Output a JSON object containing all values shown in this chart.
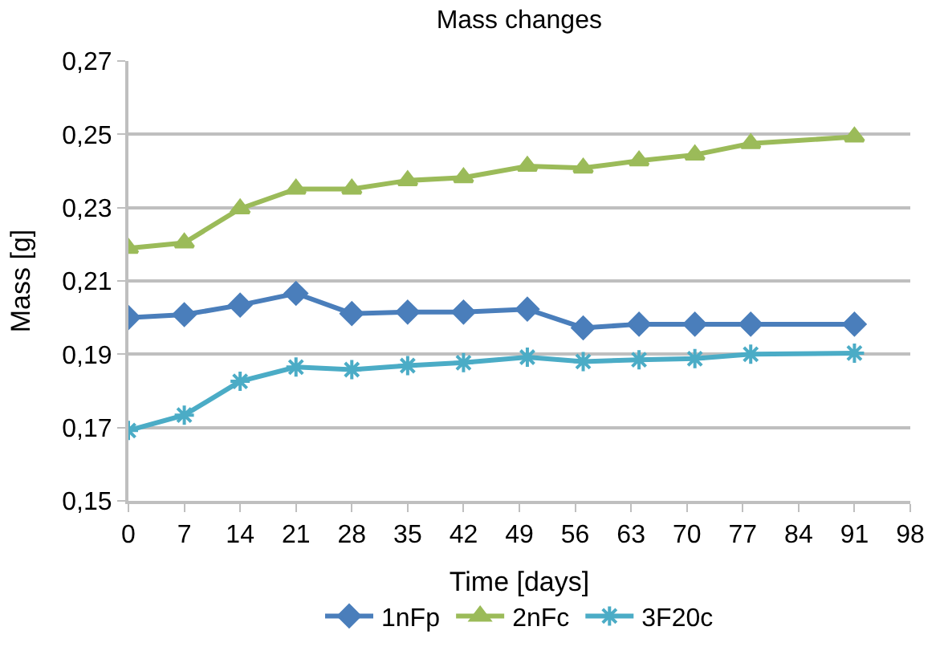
{
  "chart_data": {
    "type": "line",
    "title": "Mass changes",
    "xlabel": "Time [days]",
    "ylabel": "Mass [g]",
    "x": [
      0,
      7,
      14,
      21,
      28,
      35,
      42,
      50,
      57,
      64,
      71,
      78,
      91
    ],
    "series": [
      {
        "name": "1nFp",
        "color": "#4a7ebb",
        "marker": "diamond",
        "values": [
          0.2,
          0.2008,
          0.2034,
          0.2066,
          0.2011,
          0.2015,
          0.2015,
          0.2023,
          0.1972,
          0.1982,
          0.1982,
          0.1982,
          0.1982
        ]
      },
      {
        "name": "2nFc",
        "color": "#9bbb59",
        "marker": "triangle",
        "values": [
          0.2189,
          0.2204,
          0.2297,
          0.2351,
          0.2351,
          0.2374,
          0.2382,
          0.2413,
          0.2408,
          0.2428,
          0.2444,
          0.2475,
          0.2493
        ]
      },
      {
        "name": "3F20c",
        "color": "#4bacc6",
        "marker": "cross",
        "values": [
          0.1692,
          0.1734,
          0.1826,
          0.1865,
          0.1858,
          0.1869,
          0.1877,
          0.1892,
          0.188,
          0.1885,
          0.1888,
          0.19,
          0.1903
        ]
      }
    ],
    "xlim": [
      0,
      98
    ],
    "xticks": [
      0,
      7,
      14,
      21,
      28,
      35,
      42,
      49,
      56,
      63,
      70,
      77,
      84,
      91,
      98
    ],
    "ylim": [
      0.15,
      0.27
    ],
    "yticks": [
      {
        "value": 0.15,
        "label": "0,15"
      },
      {
        "value": 0.17,
        "label": "0,17"
      },
      {
        "value": 0.19,
        "label": "0,19"
      },
      {
        "value": 0.21,
        "label": "0,21"
      },
      {
        "value": 0.23,
        "label": "0,23"
      },
      {
        "value": 0.25,
        "label": "0,25"
      },
      {
        "value": 0.27,
        "label": "0,27"
      }
    ],
    "grid": "y",
    "legend": "bottom",
    "line_style": "solid"
  }
}
